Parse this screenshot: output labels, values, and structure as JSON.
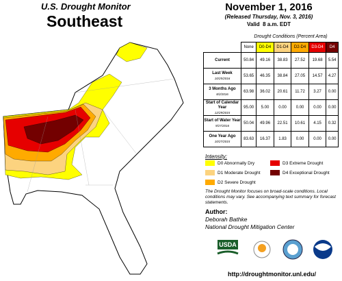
{
  "header": {
    "title": "U.S. Drought Monitor",
    "region": "Southeast",
    "date": "November 1, 2016",
    "released": "(Released Thursday, Nov. 3, 2016)",
    "valid": "Valid  8 a.m. EDT"
  },
  "table": {
    "caption": "Drought Conditions (Percent Area)",
    "columns": [
      {
        "label": "None",
        "color": "#ffffff"
      },
      {
        "label": "D0-D4",
        "color": "#ffff00"
      },
      {
        "label": "D1-D4",
        "color": "#fcd37f"
      },
      {
        "label": "D2-D4",
        "color": "#ffaa00"
      },
      {
        "label": "D3-D4",
        "color": "#e60000"
      },
      {
        "label": "D4",
        "color": "#730000"
      }
    ],
    "rows": [
      {
        "label": "Current",
        "cells": [
          "50.84",
          "49.16",
          "38.83",
          "27.52",
          "19.68",
          "5.54"
        ]
      },
      {
        "label": "Last Week",
        "date": "10/25/2016",
        "cells": [
          "53.65",
          "46.35",
          "38.84",
          "27.05",
          "14.57",
          "4.27"
        ]
      },
      {
        "label": "3 Months Ago",
        "date": "8/2/2016",
        "cells": [
          "63.98",
          "36.02",
          "20.61",
          "11.72",
          "3.27",
          "0.00"
        ]
      },
      {
        "label": "Start of Calendar Year",
        "date": "12/29/2015",
        "cells": [
          "95.00",
          "5.00",
          "0.00",
          "0.00",
          "0.00",
          "0.00"
        ]
      },
      {
        "label": "Start of Water Year",
        "date": "9/27/2016",
        "cells": [
          "50.04",
          "49.96",
          "22.51",
          "10.61",
          "4.15",
          "0.32"
        ]
      },
      {
        "label": "One Year Ago",
        "date": "10/27/2015",
        "cells": [
          "83.63",
          "16.37",
          "1.83",
          "0.00",
          "0.00",
          "0.00"
        ]
      }
    ]
  },
  "legend": {
    "title": "Intensity:",
    "items": [
      {
        "label": "D0 Abnormally Dry",
        "color": "#ffff00"
      },
      {
        "label": "D1 Moderate Drought",
        "color": "#fcd37f"
      },
      {
        "label": "D2 Severe Drought",
        "color": "#ffaa00"
      },
      {
        "label": "D3 Extreme Drought",
        "color": "#e60000"
      },
      {
        "label": "D4 Exceptional Drought",
        "color": "#730000"
      }
    ]
  },
  "note": "The Drought Monitor focuses on broad-scale conditions. Local conditions may vary. See accompanying text summary for forecast statements.",
  "author": {
    "heading": "Author:",
    "name": "Deborah Bathke",
    "org": "National Drought Mitigation Center"
  },
  "logos": [
    "USDA"
  ],
  "url": "http://droughtmonitor.unl.edu/"
}
